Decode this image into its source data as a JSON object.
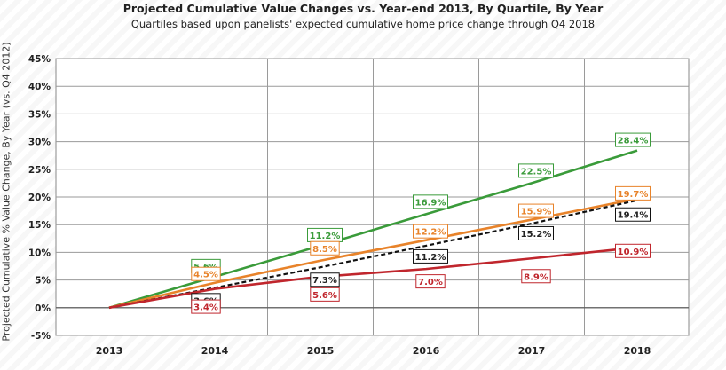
{
  "chart_data": {
    "type": "line",
    "title": "Projected Cumulative Value Changes vs. Year-end 2013, By Quartile, By Year",
    "subtitle": "Quartiles based upon panelists' expected cumulative home price change through Q4 2018",
    "ylabel": "Projected Cumulative % Value Change, By Year  (vs. Q4 2012)",
    "xlabel": "",
    "categories": [
      "2013",
      "2014",
      "2015",
      "2016",
      "2017",
      "2018"
    ],
    "ylim": [
      -5,
      45
    ],
    "y_ticks": [
      "-5%",
      "0%",
      "5%",
      "10%",
      "15%",
      "20%",
      "25%",
      "30%",
      "35%",
      "40%",
      "45%"
    ],
    "grid": true,
    "series": [
      {
        "key": "top",
        "values": [
          0,
          5.6,
          11.2,
          16.9,
          22.5,
          28.4
        ],
        "labels": [
          "",
          "5.6%",
          "11.2%",
          "16.9%",
          "22.5%",
          "28.4%"
        ],
        "color": "#3a9b3a",
        "dashed": false
      },
      {
        "key": "upper",
        "values": [
          0,
          4.5,
          8.5,
          12.2,
          15.9,
          19.7
        ],
        "labels": [
          "",
          "4.5%",
          "8.5%",
          "12.2%",
          "15.9%",
          "19.7%"
        ],
        "color": "#e8832a",
        "dashed": false
      },
      {
        "key": "average",
        "values": [
          0,
          3.6,
          7.3,
          11.2,
          15.2,
          19.4
        ],
        "labels": [
          "",
          "3.6%",
          "7.3%",
          "11.2%",
          "15.2%",
          "19.4%"
        ],
        "color": "#111111",
        "dashed": true
      },
      {
        "key": "lower",
        "values": [
          0,
          3.4,
          5.6,
          7.0,
          8.9,
          10.9
        ],
        "labels": [
          "",
          "3.4%",
          "5.6%",
          "7.0%",
          "8.9%",
          "10.9%"
        ],
        "color": "#c0262d",
        "dashed": false
      }
    ]
  }
}
